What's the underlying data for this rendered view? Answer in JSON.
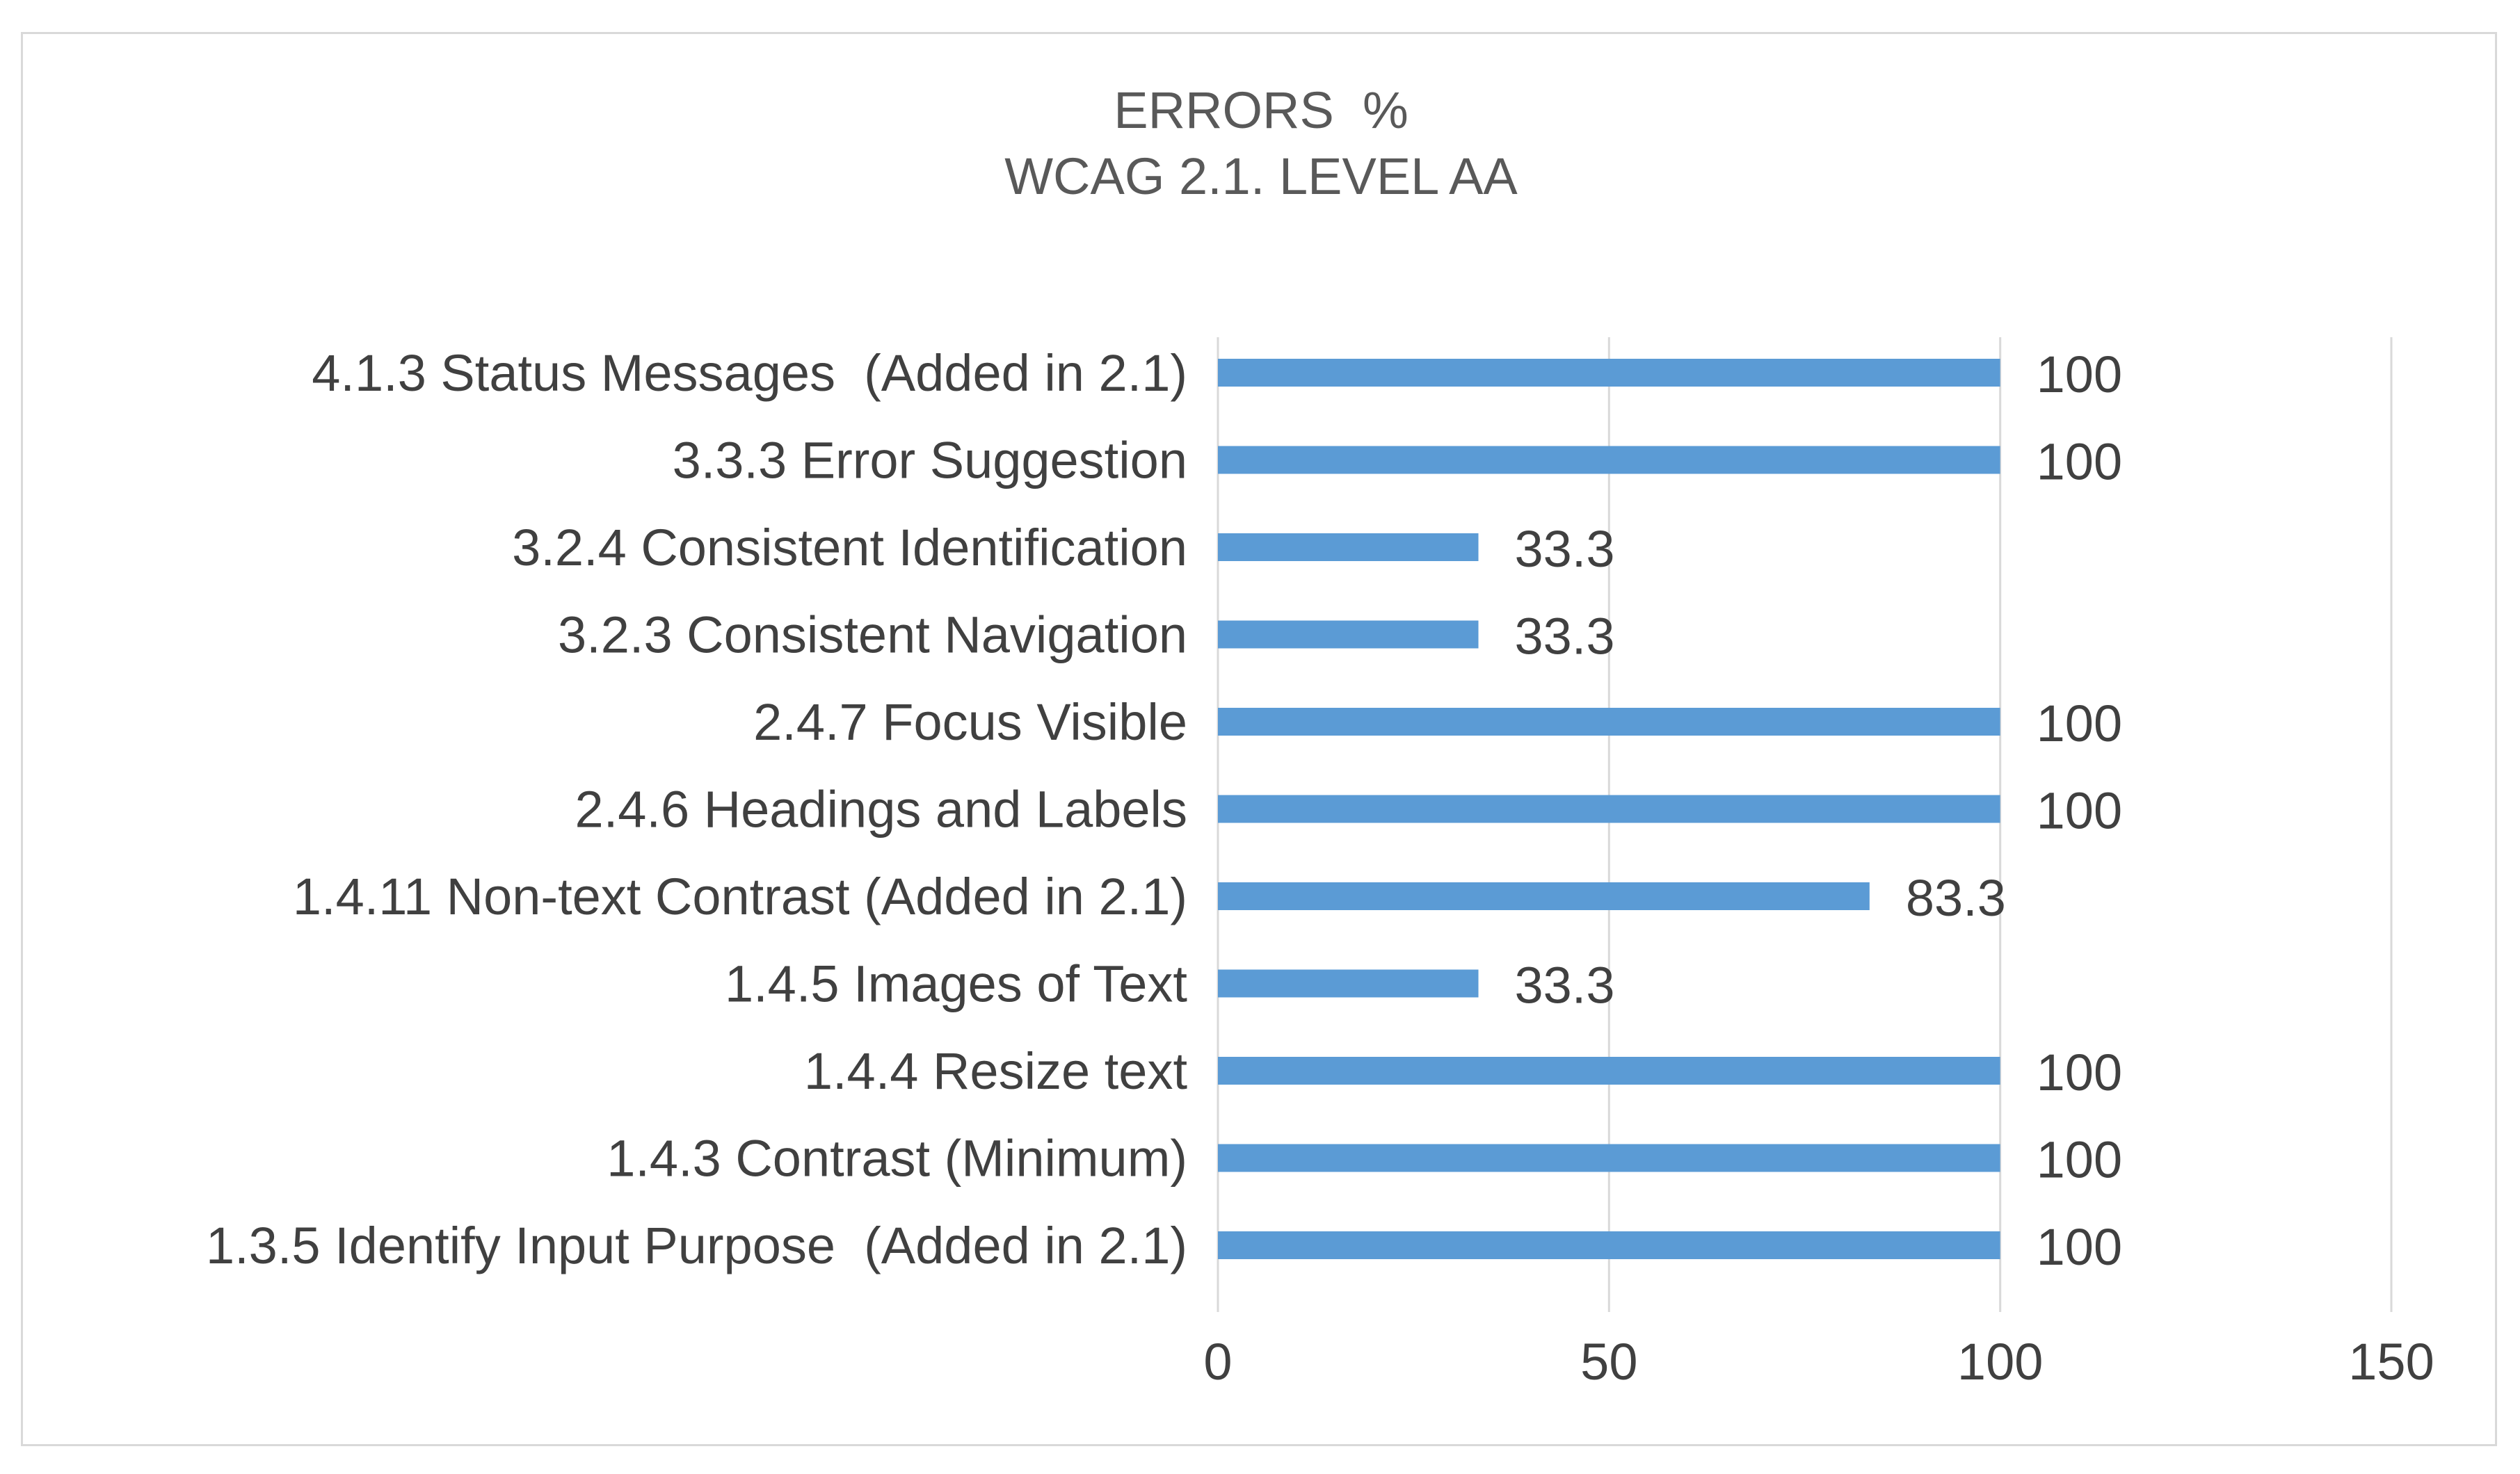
{
  "chart_data": {
    "type": "bar",
    "orientation": "horizontal",
    "title": "ERRORS  %",
    "subtitle": "WCAG 2.1. LEVEL AA",
    "categories": [
      "4.1.3 Status Messages  (Added in 2.1)",
      "3.3.3 Error Suggestion",
      "3.2.4 Consistent Identification",
      "3.2.3 Consistent Navigation",
      "2.4.7 Focus Visible",
      "2.4.6 Headings and Labels",
      "1.4.11 Non-text Contrast (Added in 2.1)",
      "1.4.5 Images of Text",
      "1.4.4 Resize text",
      "1.4.3 Contrast (Minimum)",
      "1.3.5 Identify Input Purpose  (Added in 2.1)"
    ],
    "values": [
      100,
      100,
      33.3,
      33.3,
      100,
      100,
      83.3,
      33.3,
      100,
      100,
      100
    ],
    "value_labels": [
      "100",
      "100",
      "33.3",
      "33.3",
      "100",
      "100",
      "83.3",
      "33.3",
      "100",
      "100",
      "100"
    ],
    "xlim": [
      0,
      150
    ],
    "xticks": [
      0,
      50,
      100,
      150
    ],
    "xtick_labels": [
      "0",
      "50",
      "100",
      "150"
    ],
    "xlabel": "",
    "ylabel": "",
    "grid": "vertical",
    "legend": "none",
    "colors": {
      "bar": "#5b9bd5",
      "grid": "#d9d9d9",
      "text": "#404040",
      "title": "#595959",
      "border": "#d9d9d9"
    }
  }
}
